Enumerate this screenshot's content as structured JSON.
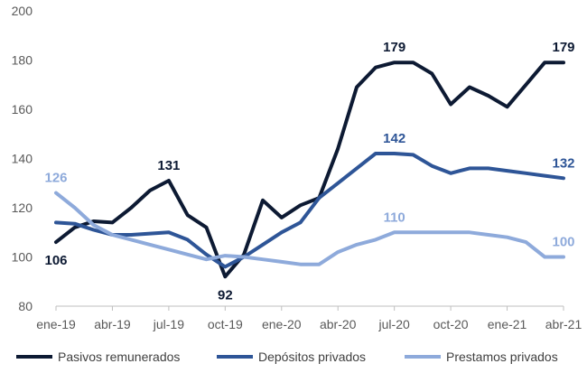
{
  "chart_data": {
    "type": "line",
    "title": "",
    "xlabel": "",
    "ylabel": "",
    "ylim": [
      80,
      200
    ],
    "yticks": [
      80,
      100,
      120,
      140,
      160,
      180,
      200
    ],
    "grid": false,
    "legend_position": "bottom",
    "x": [
      "ene-19",
      "feb-19",
      "mar-19",
      "abr-19",
      "may-19",
      "jun-19",
      "jul-19",
      "ago-19",
      "sep-19",
      "oct-19",
      "nov-19",
      "dic-19",
      "ene-20",
      "feb-20",
      "mar-20",
      "abr-20",
      "may-20",
      "jun-20",
      "jul-20",
      "ago-20",
      "sep-20",
      "oct-20",
      "nov-20",
      "dic-20",
      "ene-21",
      "feb-21",
      "mar-21",
      "abr-21"
    ],
    "xtick_labels": [
      "ene-19",
      "abr-19",
      "jul-19",
      "oct-19",
      "ene-20",
      "abr-20",
      "jul-20",
      "oct-20",
      "ene-21",
      "abr-21"
    ],
    "series": [
      {
        "name": "Pasivos remunerados",
        "color": "#0d1a33",
        "values": [
          106,
          112,
          114.5,
          114,
          120,
          127,
          131,
          117,
          112,
          92,
          101,
          123,
          116,
          121,
          124,
          144,
          169,
          177,
          179,
          179,
          174.5,
          162,
          169,
          165.5,
          161,
          170,
          179,
          179
        ],
        "labels": [
          {
            "index": 0,
            "text": "106",
            "pos": "below"
          },
          {
            "index": 6,
            "text": "131",
            "pos": "above"
          },
          {
            "index": 9,
            "text": "92",
            "pos": "below"
          },
          {
            "index": 18,
            "text": "179",
            "pos": "above"
          },
          {
            "index": 27,
            "text": "179",
            "pos": "above"
          }
        ]
      },
      {
        "name": "Depósitos privados",
        "color": "#2e5597",
        "values": [
          114,
          113.5,
          111,
          109,
          109,
          109.5,
          110,
          107,
          101,
          96,
          100,
          105,
          110,
          114,
          124,
          130,
          136,
          142,
          142,
          141.5,
          137,
          134,
          136,
          136,
          135,
          134,
          133,
          132
        ],
        "labels": [
          {
            "index": 18,
            "text": "142",
            "pos": "above"
          },
          {
            "index": 27,
            "text": "132",
            "pos": "above"
          }
        ]
      },
      {
        "name": "Prestamos privados",
        "color": "#8eaadb",
        "values": [
          126,
          120,
          113,
          109,
          107,
          105,
          103,
          101,
          99,
          100.5,
          100,
          99,
          98,
          97,
          97,
          102,
          105,
          107,
          110,
          110,
          110,
          110,
          110,
          109,
          108,
          106,
          100,
          100
        ],
        "labels": [
          {
            "index": 0,
            "text": "126",
            "pos": "above"
          },
          {
            "index": 18,
            "text": "110",
            "pos": "above"
          },
          {
            "index": 27,
            "text": "100",
            "pos": "above"
          }
        ]
      }
    ]
  }
}
